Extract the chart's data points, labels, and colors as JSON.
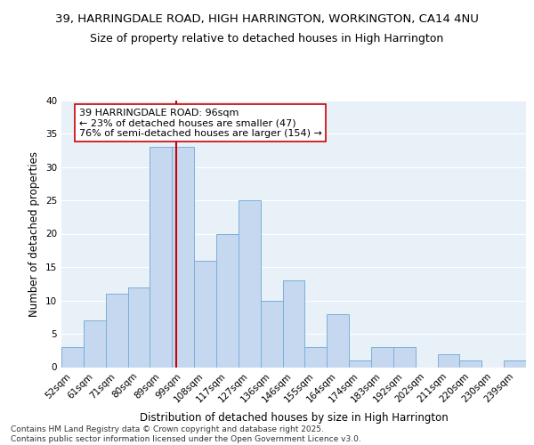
{
  "title_line1": "39, HARRINGDALE ROAD, HIGH HARRINGTON, WORKINGTON, CA14 4NU",
  "title_line2": "Size of property relative to detached houses in High Harrington",
  "xlabel": "Distribution of detached houses by size in High Harrington",
  "ylabel": "Number of detached properties",
  "bin_labels": [
    "52sqm",
    "61sqm",
    "71sqm",
    "80sqm",
    "89sqm",
    "99sqm",
    "108sqm",
    "117sqm",
    "127sqm",
    "136sqm",
    "146sqm",
    "155sqm",
    "164sqm",
    "174sqm",
    "183sqm",
    "192sqm",
    "202sqm",
    "211sqm",
    "220sqm",
    "230sqm",
    "239sqm"
  ],
  "bin_values": [
    3,
    7,
    11,
    12,
    33,
    33,
    16,
    20,
    25,
    10,
    13,
    3,
    8,
    1,
    3,
    3,
    0,
    2,
    1,
    0,
    1
  ],
  "bar_color": "#c5d8f0",
  "bar_edge_color": "#7ab0d8",
  "red_line_color": "#cc0000",
  "annotation_text": "39 HARRINGDALE ROAD: 96sqm\n← 23% of detached houses are smaller (47)\n76% of semi-detached houses are larger (154) →",
  "annotation_box_color": "white",
  "annotation_box_edge_color": "#cc0000",
  "ylim": [
    0,
    40
  ],
  "yticks": [
    0,
    5,
    10,
    15,
    20,
    25,
    30,
    35,
    40
  ],
  "background_color": "#e8f0f8",
  "footer_text": "Contains HM Land Registry data © Crown copyright and database right 2025.\nContains public sector information licensed under the Open Government Licence v3.0.",
  "title_fontsize": 9.5,
  "subtitle_fontsize": 9,
  "axis_label_fontsize": 8.5,
  "tick_fontsize": 7.5,
  "annotation_fontsize": 8,
  "footer_fontsize": 6.5
}
